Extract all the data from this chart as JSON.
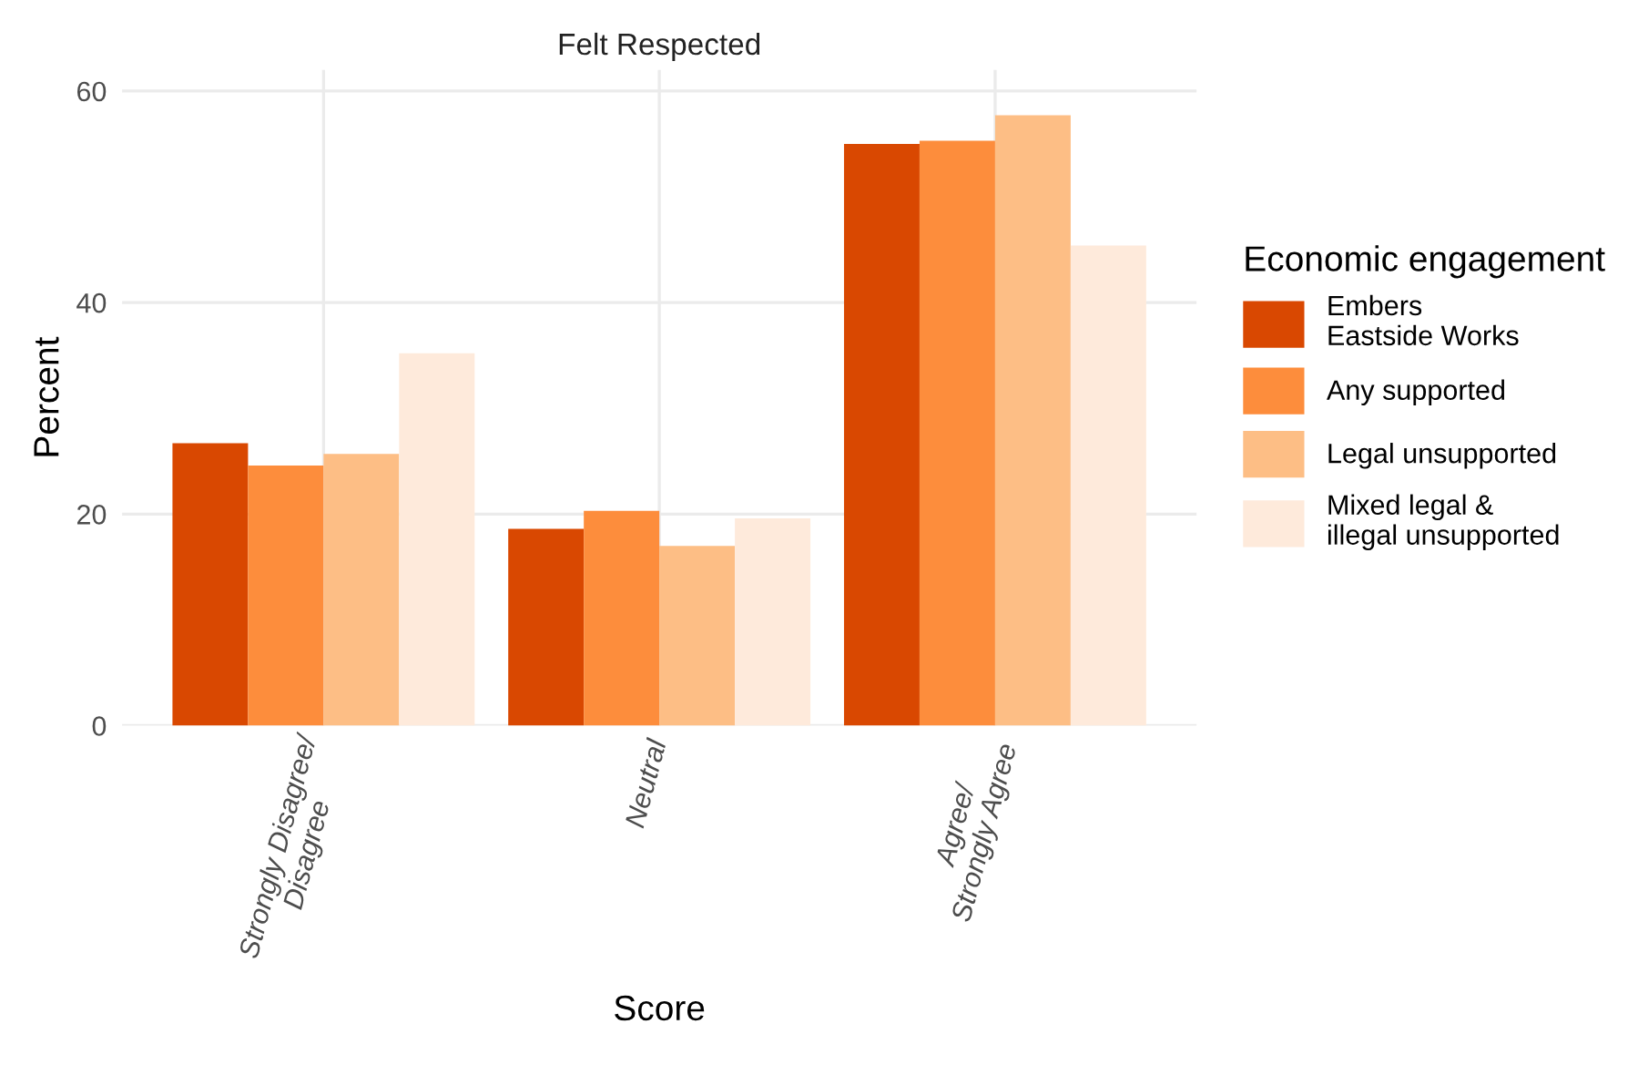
{
  "chart_data": {
    "type": "bar",
    "title": "Felt Respected",
    "xlabel": "Score",
    "ylabel": "Percent",
    "legend_title": "Economic engagement",
    "categories": [
      "Strongly Disagree/\nDisagree",
      "Neutral",
      "Agree/\nStrongly Agree"
    ],
    "series": [
      {
        "name": "Embers\nEastside Works",
        "color": "#d94801",
        "values": [
          26.7,
          18.6,
          55.0
        ]
      },
      {
        "name": "Any supported",
        "color": "#fd8d3c",
        "values": [
          24.6,
          20.3,
          55.3
        ]
      },
      {
        "name": "Legal unsupported",
        "color": "#fdbe85",
        "values": [
          25.7,
          17.0,
          57.7
        ]
      },
      {
        "name": "Mixed legal &\nillegal unsupported",
        "color": "#feeadb",
        "values": [
          35.2,
          19.6,
          45.4
        ]
      }
    ],
    "ylim": [
      0,
      62
    ],
    "yticks": [
      0,
      20,
      40,
      60
    ],
    "grid": true,
    "legend": "right"
  }
}
